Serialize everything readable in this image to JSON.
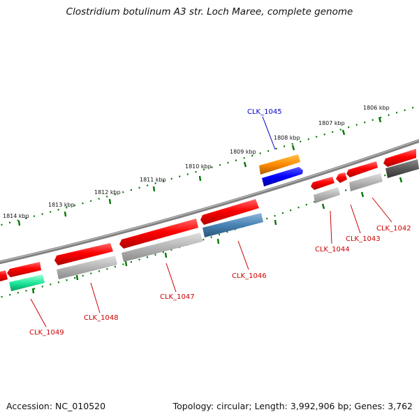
{
  "title": "Clostridium botulinum A3 str. Loch Maree, complete genome",
  "footer": {
    "accession": "Accession: NC_010520",
    "info": "Topology: circular; Length: 3,992,906 bp; Genes: 3,762"
  },
  "scale_labels": [
    "1806 kbp",
    "1807 kbp",
    "1808 kbp",
    "1809 kbp",
    "1810 kbp",
    "1811 kbp",
    "1812 kbp",
    "1813 kbp",
    "1814 kbp"
  ],
  "gene_labels": {
    "clk_1042": "CLK_1042",
    "clk_1043": "CLK_1043",
    "clk_1044": "CLK_1044",
    "clk_1045": "CLK_1045",
    "clk_1046": "CLK_1046",
    "clk_1047": "CLK_1047",
    "clk_1048": "CLK_1048",
    "clk_1049": "CLK_1049"
  },
  "colors": {
    "backbone": "#808080",
    "cds": "#ff0000",
    "label_red": "#cc0000",
    "label_blue": "#0000cc",
    "tick_green": "#007700",
    "orange_feature": "#ff8c00",
    "blue_feature": "#0000ff",
    "steelblue_feature": "#4682b4",
    "grey_feature": "#b0b0b0",
    "darkgrey_feature": "#555555",
    "green_feature": "#00e08a"
  }
}
